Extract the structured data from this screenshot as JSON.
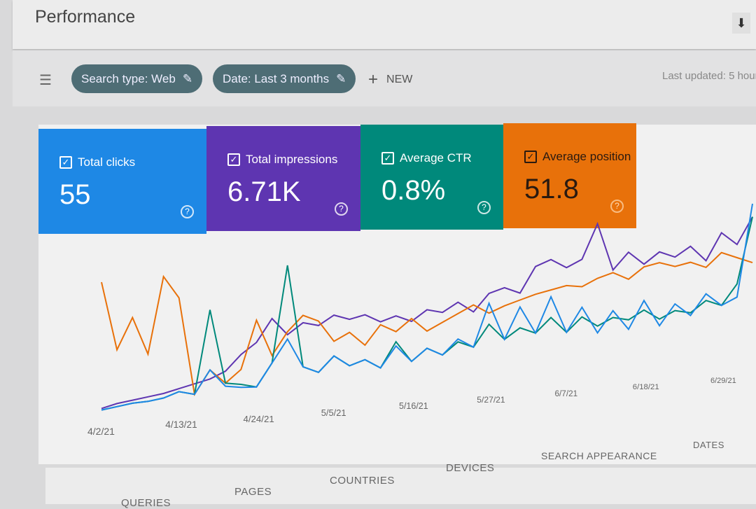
{
  "header": {
    "title": "Performance",
    "download_icon": "download-icon"
  },
  "filters": {
    "search_type": "Search type: Web",
    "date": "Date: Last 3 months",
    "new_label": "NEW",
    "last_updated": "Last updated: 5 hour"
  },
  "cards": [
    {
      "label": "Total clicks",
      "value": "55",
      "color": "#1e88e5"
    },
    {
      "label": "Total impressions",
      "value": "6.71K",
      "color": "#5e35b1"
    },
    {
      "label": "Average CTR",
      "value": "0.8%",
      "color": "#00897b"
    },
    {
      "label": "Average position",
      "value": "51.8",
      "color": "#e8710a"
    }
  ],
  "chart_data": {
    "type": "line",
    "x_ticks": [
      "4/2/21",
      "4/13/21",
      "4/24/21",
      "5/5/21",
      "5/16/21",
      "5/27/21",
      "6/7/21",
      "6/18/21",
      "6/29/21"
    ],
    "ylim": [
      0,
      100
    ],
    "grid": false,
    "series": [
      {
        "name": "Total impressions",
        "color": "#5e35b1",
        "values": [
          3,
          5,
          6,
          7,
          8,
          10,
          12,
          14,
          18,
          28,
          35,
          50,
          38,
          45,
          42,
          48,
          44,
          46,
          40,
          43,
          38,
          45,
          42,
          48,
          40,
          52,
          55,
          50,
          68,
          72,
          65,
          70,
          95,
          60,
          72,
          62,
          70,
          65,
          72,
          60,
          80,
          70,
          90
        ]
      },
      {
        "name": "Average position",
        "color": "#e8710a",
        "values": [
          85,
          40,
          60,
          35,
          85,
          70,
          5,
          20,
          10,
          18,
          50,
          25,
          40,
          50,
          45,
          30,
          35,
          25,
          38,
          32,
          40,
          30,
          35,
          40,
          45,
          38,
          42,
          45,
          48,
          50,
          52,
          50,
          55,
          58,
          52,
          60,
          62,
          58,
          60,
          55,
          65,
          60,
          55
        ]
      },
      {
        "name": "Average CTR",
        "color": "#00897b",
        "values": [
          2,
          3,
          4,
          4,
          5,
          8,
          5,
          60,
          10,
          8,
          5,
          20,
          85,
          15,
          10,
          20,
          12,
          15,
          8,
          25,
          10,
          18,
          12,
          20,
          15,
          30,
          18,
          25,
          20,
          30,
          18,
          28,
          20,
          25,
          22,
          28,
          20,
          25,
          22,
          30,
          25,
          40,
          90
        ]
      },
      {
        "name": "Total clicks",
        "color": "#1e88e5",
        "values": [
          2,
          3,
          4,
          4,
          5,
          8,
          5,
          20,
          8,
          6,
          5,
          20,
          35,
          15,
          10,
          20,
          12,
          15,
          8,
          22,
          10,
          18,
          12,
          22,
          15,
          45,
          18,
          40,
          20,
          45,
          18,
          35,
          15,
          30,
          15,
          35,
          15,
          30,
          20,
          35,
          25,
          30,
          100
        ]
      }
    ]
  },
  "tabs": [
    "QUERIES",
    "PAGES",
    "COUNTRIES",
    "DEVICES",
    "SEARCH APPEARANCE",
    "DATES"
  ]
}
